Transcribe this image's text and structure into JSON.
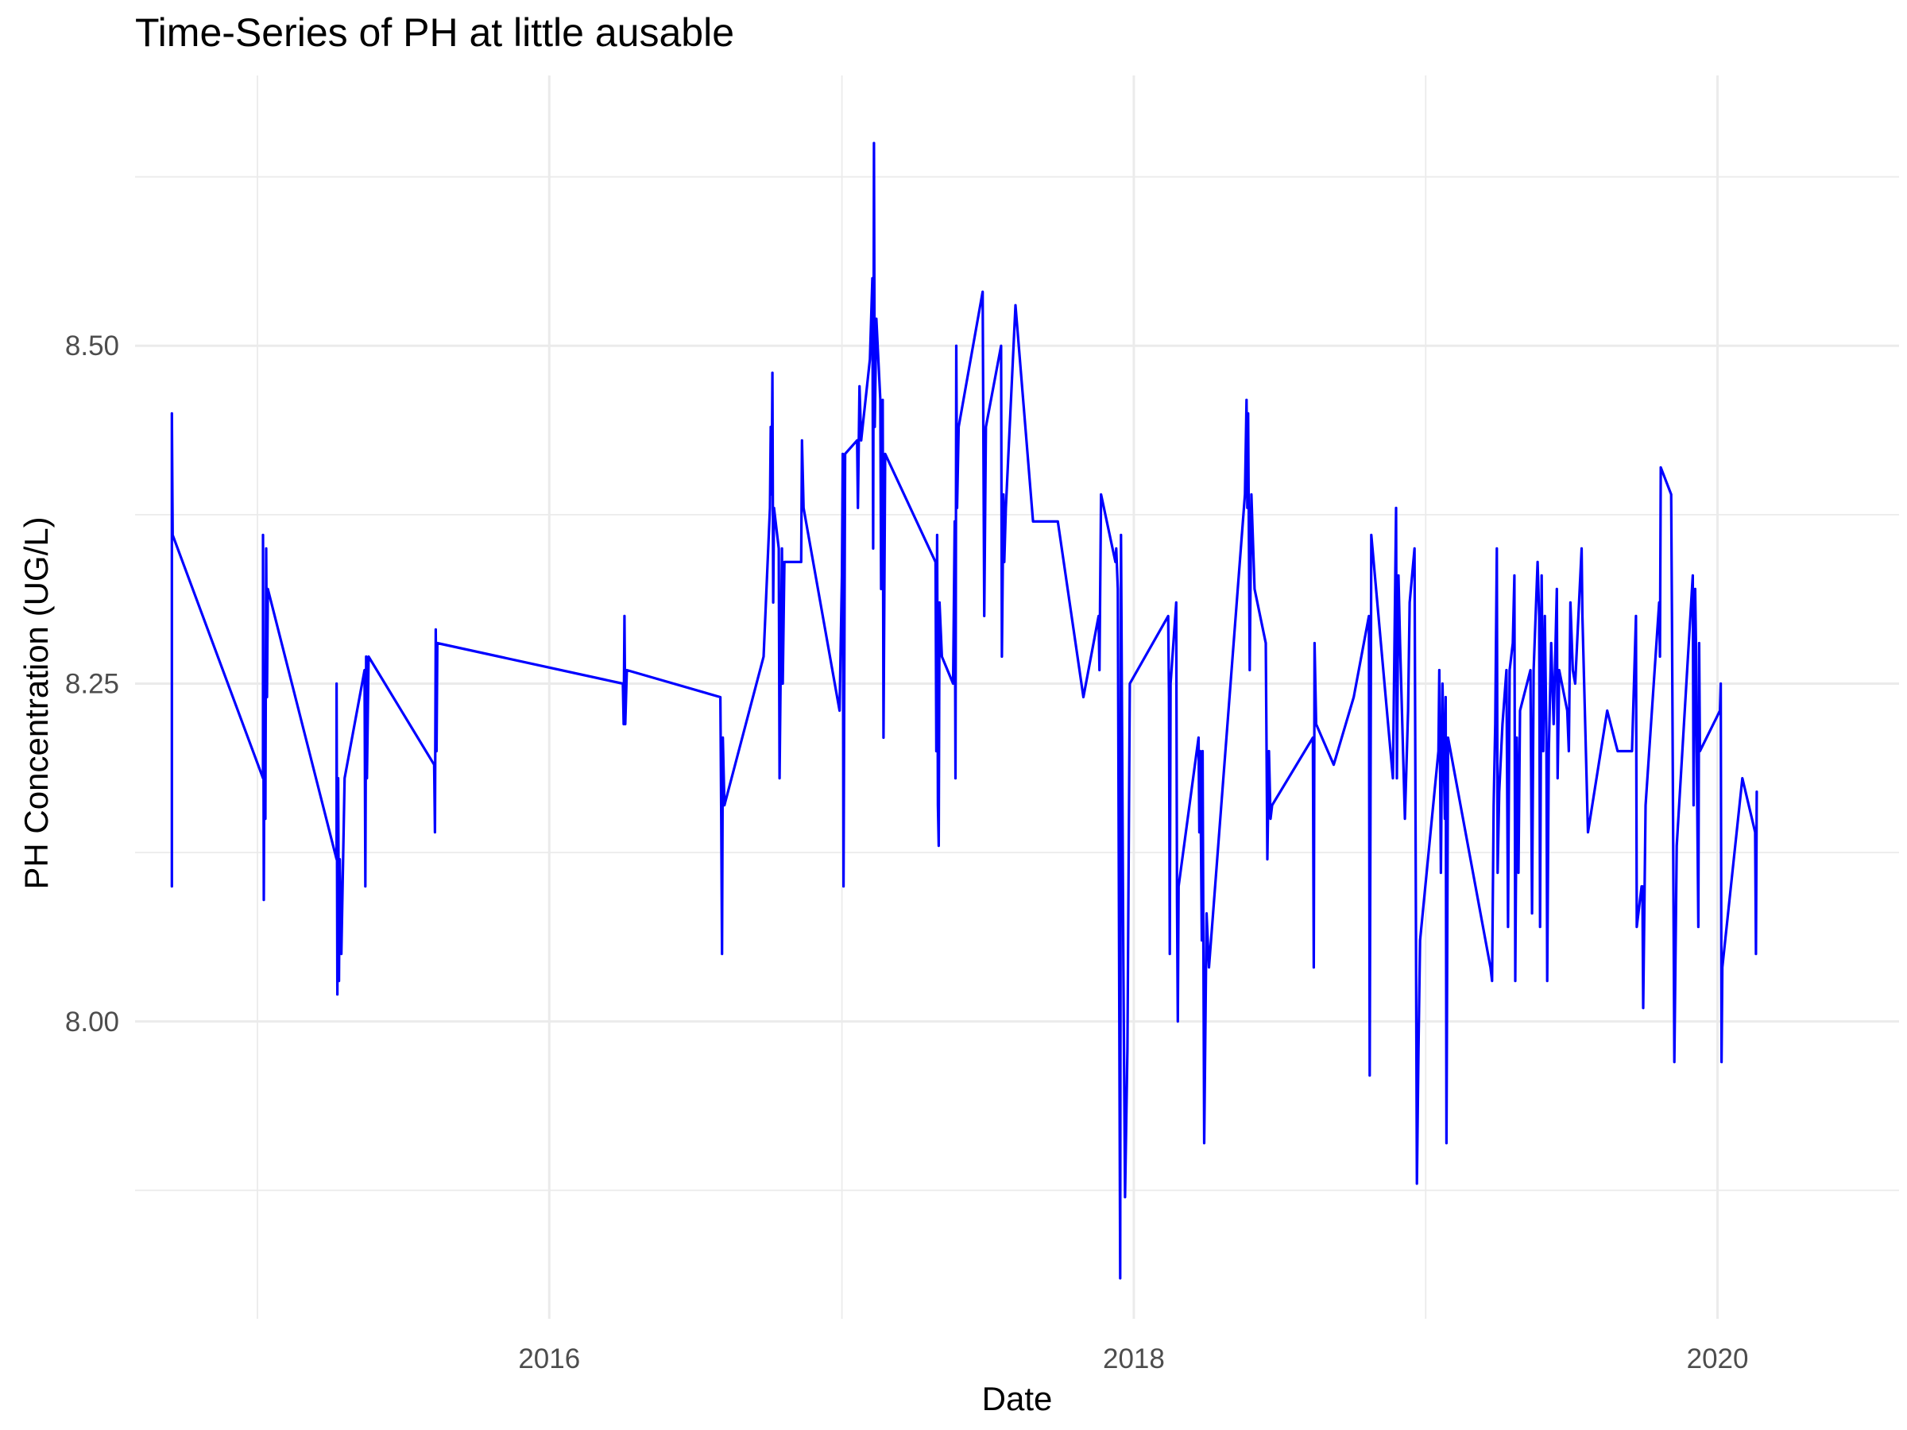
{
  "chart_data": {
    "type": "line",
    "title": "Time-Series of PH at little ausable",
    "xlabel": "Date",
    "ylabel": "PH Concentration (UG/L)",
    "x_tick_labels": [
      "2016",
      "2018",
      "2020"
    ],
    "y_tick_labels": [
      "8.00",
      "8.25",
      "8.50"
    ],
    "xlim": [
      "2014-08-01",
      "2020-08-15"
    ],
    "ylim": [
      7.78,
      8.7
    ],
    "grid": true,
    "series_color": "#0000ff",
    "series": [
      {
        "points": [
          [
            "2014-09-16",
            8.1
          ],
          [
            "2014-09-16",
            8.45
          ],
          [
            "2014-09-17",
            8.36
          ],
          [
            "2015-01-08",
            8.18
          ],
          [
            "2015-01-08",
            8.36
          ],
          [
            "2015-01-09",
            8.09
          ],
          [
            "2015-01-10",
            8.26
          ],
          [
            "2015-01-11",
            8.15
          ],
          [
            "2015-01-12",
            8.35
          ],
          [
            "2015-01-13",
            8.24
          ],
          [
            "2015-01-14",
            8.32
          ],
          [
            "2015-04-10",
            8.12
          ],
          [
            "2015-04-10",
            8.25
          ],
          [
            "2015-04-11",
            8.02
          ],
          [
            "2015-04-12",
            8.18
          ],
          [
            "2015-04-13",
            8.03
          ],
          [
            "2015-04-14",
            8.12
          ],
          [
            "2015-04-16",
            8.05
          ],
          [
            "2015-04-20",
            8.18
          ],
          [
            "2015-05-15",
            8.26
          ],
          [
            "2015-05-16",
            8.1
          ],
          [
            "2015-05-17",
            8.27
          ],
          [
            "2015-05-18",
            8.18
          ],
          [
            "2015-05-20",
            8.27
          ],
          [
            "2015-08-10",
            8.19
          ],
          [
            "2015-08-11",
            8.14
          ],
          [
            "2015-08-12",
            8.29
          ],
          [
            "2015-08-13",
            8.2
          ],
          [
            "2015-08-14",
            8.28
          ],
          [
            "2016-04-02",
            8.25
          ],
          [
            "2016-04-03",
            8.22
          ],
          [
            "2016-04-04",
            8.3
          ],
          [
            "2016-04-05",
            8.22
          ],
          [
            "2016-04-07",
            8.26
          ],
          [
            "2016-08-02",
            8.24
          ],
          [
            "2016-08-03",
            8.15
          ],
          [
            "2016-08-04",
            8.05
          ],
          [
            "2016-08-05",
            8.21
          ],
          [
            "2016-08-07",
            8.16
          ],
          [
            "2016-09-25",
            8.27
          ],
          [
            "2016-10-03",
            8.38
          ],
          [
            "2016-10-04",
            8.44
          ],
          [
            "2016-10-05",
            8.39
          ],
          [
            "2016-10-06",
            8.48
          ],
          [
            "2016-10-07",
            8.31
          ],
          [
            "2016-10-08",
            8.38
          ],
          [
            "2016-10-12",
            8.36
          ],
          [
            "2016-10-14",
            8.35
          ],
          [
            "2016-10-15",
            8.18
          ],
          [
            "2016-10-18",
            8.35
          ],
          [
            "2016-10-19",
            8.25
          ],
          [
            "2016-10-21",
            8.34
          ],
          [
            "2016-11-05",
            8.34
          ],
          [
            "2016-11-11",
            8.34
          ],
          [
            "2016-11-12",
            8.43
          ],
          [
            "2016-11-14",
            8.38
          ],
          [
            "2016-12-29",
            8.23
          ],
          [
            "2017-01-01",
            8.33
          ],
          [
            "2017-01-02",
            8.42
          ],
          [
            "2017-01-03",
            8.1
          ],
          [
            "2017-01-05",
            8.42
          ],
          [
            "2017-01-20",
            8.43
          ],
          [
            "2017-01-21",
            8.38
          ],
          [
            "2017-01-23",
            8.47
          ],
          [
            "2017-01-25",
            8.43
          ],
          [
            "2017-02-05",
            8.49
          ],
          [
            "2017-02-08",
            8.55
          ],
          [
            "2017-02-09",
            8.35
          ],
          [
            "2017-02-10",
            8.65
          ],
          [
            "2017-02-11",
            8.44
          ],
          [
            "2017-02-13",
            8.52
          ],
          [
            "2017-02-18",
            8.46
          ],
          [
            "2017-02-19",
            8.32
          ],
          [
            "2017-02-21",
            8.46
          ],
          [
            "2017-02-22",
            8.21
          ],
          [
            "2017-02-24",
            8.42
          ],
          [
            "2017-04-28",
            8.34
          ],
          [
            "2017-04-29",
            8.2
          ],
          [
            "2017-04-30",
            8.36
          ],
          [
            "2017-05-01",
            8.16
          ],
          [
            "2017-05-02",
            8.13
          ],
          [
            "2017-05-03",
            8.31
          ],
          [
            "2017-05-06",
            8.27
          ],
          [
            "2017-05-20",
            8.25
          ],
          [
            "2017-05-22",
            8.37
          ],
          [
            "2017-05-23",
            8.18
          ],
          [
            "2017-05-24",
            8.5
          ],
          [
            "2017-05-25",
            8.38
          ],
          [
            "2017-05-27",
            8.44
          ],
          [
            "2017-06-26",
            8.54
          ],
          [
            "2017-06-28",
            8.3
          ],
          [
            "2017-06-30",
            8.44
          ],
          [
            "2017-07-19",
            8.5
          ],
          [
            "2017-07-20",
            8.27
          ],
          [
            "2017-07-22",
            8.39
          ],
          [
            "2017-07-23",
            8.34
          ],
          [
            "2017-07-25",
            8.38
          ],
          [
            "2017-08-06",
            8.53
          ],
          [
            "2017-08-28",
            8.37
          ],
          [
            "2017-09-28",
            8.37
          ],
          [
            "2017-10-30",
            8.24
          ],
          [
            "2017-11-18",
            8.3
          ],
          [
            "2017-11-19",
            8.26
          ],
          [
            "2017-11-21",
            8.39
          ],
          [
            "2017-12-09",
            8.34
          ],
          [
            "2017-12-10",
            8.35
          ],
          [
            "2017-12-12",
            8.32
          ],
          [
            "2017-12-15",
            7.81
          ],
          [
            "2017-12-16",
            8.36
          ],
          [
            "2017-12-19",
            8.04
          ],
          [
            "2017-12-21",
            7.87
          ],
          [
            "2017-12-24",
            7.98
          ],
          [
            "2017-12-27",
            8.25
          ],
          [
            "2018-02-13",
            8.3
          ],
          [
            "2018-02-14",
            8.24
          ],
          [
            "2018-02-15",
            8.05
          ],
          [
            "2018-02-16",
            8.25
          ],
          [
            "2018-02-23",
            8.31
          ],
          [
            "2018-02-24",
            8.09
          ],
          [
            "2018-02-25",
            8.0
          ],
          [
            "2018-02-26",
            8.1
          ],
          [
            "2018-03-23",
            8.21
          ],
          [
            "2018-03-24",
            8.14
          ],
          [
            "2018-03-25",
            8.2
          ],
          [
            "2018-03-27",
            8.06
          ],
          [
            "2018-03-28",
            8.2
          ],
          [
            "2018-03-30",
            7.91
          ],
          [
            "2018-04-02",
            8.08
          ],
          [
            "2018-04-05",
            8.04
          ],
          [
            "2018-05-20",
            8.39
          ],
          [
            "2018-05-22",
            8.46
          ],
          [
            "2018-05-23",
            8.38
          ],
          [
            "2018-05-24",
            8.45
          ],
          [
            "2018-05-26",
            8.26
          ],
          [
            "2018-05-28",
            8.39
          ],
          [
            "2018-06-01",
            8.32
          ],
          [
            "2018-06-15",
            8.28
          ],
          [
            "2018-06-17",
            8.12
          ],
          [
            "2018-06-19",
            8.2
          ],
          [
            "2018-06-21",
            8.15
          ],
          [
            "2018-06-23",
            8.16
          ],
          [
            "2018-08-13",
            8.21
          ],
          [
            "2018-08-14",
            8.04
          ],
          [
            "2018-08-15",
            8.28
          ],
          [
            "2018-08-17",
            8.22
          ],
          [
            "2018-09-08",
            8.19
          ],
          [
            "2018-10-03",
            8.24
          ],
          [
            "2018-10-22",
            8.3
          ],
          [
            "2018-10-23",
            7.96
          ],
          [
            "2018-10-25",
            8.36
          ],
          [
            "2018-11-21",
            8.18
          ],
          [
            "2018-11-25",
            8.38
          ],
          [
            "2018-11-26",
            8.18
          ],
          [
            "2018-11-28",
            8.33
          ],
          [
            "2018-11-30",
            8.28
          ],
          [
            "2018-12-06",
            8.15
          ],
          [
            "2018-12-10",
            8.23
          ],
          [
            "2018-12-12",
            8.31
          ],
          [
            "2018-12-18",
            8.35
          ],
          [
            "2018-12-21",
            7.88
          ],
          [
            "2018-12-23",
            7.98
          ],
          [
            "2018-12-25",
            8.06
          ],
          [
            "2019-01-17",
            8.2
          ],
          [
            "2019-01-18",
            8.26
          ],
          [
            "2019-01-20",
            8.11
          ],
          [
            "2019-01-22",
            8.25
          ],
          [
            "2019-01-25",
            8.15
          ],
          [
            "2019-01-26",
            8.24
          ],
          [
            "2019-01-27",
            7.91
          ],
          [
            "2019-01-29",
            8.21
          ],
          [
            "2019-03-23",
            8.04
          ],
          [
            "2019-03-25",
            8.03
          ],
          [
            "2019-03-27",
            8.16
          ],
          [
            "2019-03-29",
            8.22
          ],
          [
            "2019-03-31",
            8.35
          ],
          [
            "2019-04-01",
            8.11
          ],
          [
            "2019-04-03",
            8.17
          ],
          [
            "2019-04-07",
            8.22
          ],
          [
            "2019-04-12",
            8.26
          ],
          [
            "2019-04-14",
            8.07
          ],
          [
            "2019-04-16",
            8.26
          ],
          [
            "2019-04-20",
            8.28
          ],
          [
            "2019-04-22",
            8.33
          ],
          [
            "2019-04-23",
            8.03
          ],
          [
            "2019-04-25",
            8.21
          ],
          [
            "2019-04-27",
            8.11
          ],
          [
            "2019-04-29",
            8.23
          ],
          [
            "2019-05-12",
            8.26
          ],
          [
            "2019-05-14",
            8.08
          ],
          [
            "2019-05-16",
            8.26
          ],
          [
            "2019-05-21",
            8.34
          ],
          [
            "2019-05-23",
            8.3
          ],
          [
            "2019-05-24",
            8.07
          ],
          [
            "2019-05-26",
            8.33
          ],
          [
            "2019-05-28",
            8.2
          ],
          [
            "2019-05-30",
            8.3
          ],
          [
            "2019-06-01",
            8.21
          ],
          [
            "2019-06-02",
            8.03
          ],
          [
            "2019-06-04",
            8.2
          ],
          [
            "2019-06-07",
            8.28
          ],
          [
            "2019-06-10",
            8.22
          ],
          [
            "2019-06-14",
            8.32
          ],
          [
            "2019-06-15",
            8.18
          ],
          [
            "2019-06-17",
            8.26
          ],
          [
            "2019-06-27",
            8.23
          ],
          [
            "2019-06-29",
            8.2
          ],
          [
            "2019-07-01",
            8.31
          ],
          [
            "2019-07-04",
            8.26
          ],
          [
            "2019-07-07",
            8.25
          ],
          [
            "2019-07-15",
            8.35
          ],
          [
            "2019-07-16",
            8.3
          ],
          [
            "2019-07-23",
            8.14
          ],
          [
            "2019-08-16",
            8.23
          ],
          [
            "2019-08-29",
            8.2
          ],
          [
            "2019-09-16",
            8.2
          ],
          [
            "2019-09-21",
            8.3
          ],
          [
            "2019-09-22",
            8.07
          ],
          [
            "2019-09-28",
            8.1
          ],
          [
            "2019-09-29",
            8.1
          ],
          [
            "2019-09-30",
            8.01
          ],
          [
            "2019-10-03",
            8.16
          ],
          [
            "2019-10-20",
            8.31
          ],
          [
            "2019-10-21",
            8.27
          ],
          [
            "2019-10-22",
            8.41
          ],
          [
            "2019-11-04",
            8.39
          ],
          [
            "2019-11-05",
            8.3
          ],
          [
            "2019-11-08",
            7.97
          ],
          [
            "2019-11-11",
            8.13
          ],
          [
            "2019-12-01",
            8.33
          ],
          [
            "2019-12-02",
            8.16
          ],
          [
            "2019-12-04",
            8.32
          ],
          [
            "2019-12-05",
            8.28
          ],
          [
            "2019-12-06",
            8.2
          ],
          [
            "2019-12-08",
            8.07
          ],
          [
            "2019-12-09",
            8.28
          ],
          [
            "2019-12-10",
            8.2
          ],
          [
            "2020-01-04",
            8.23
          ],
          [
            "2020-01-05",
            8.25
          ],
          [
            "2020-01-06",
            7.97
          ],
          [
            "2020-01-07",
            8.04
          ],
          [
            "2020-02-01",
            8.18
          ],
          [
            "2020-02-17",
            8.14
          ],
          [
            "2020-02-18",
            8.05
          ],
          [
            "2020-02-19",
            8.17
          ]
        ]
      }
    ]
  }
}
